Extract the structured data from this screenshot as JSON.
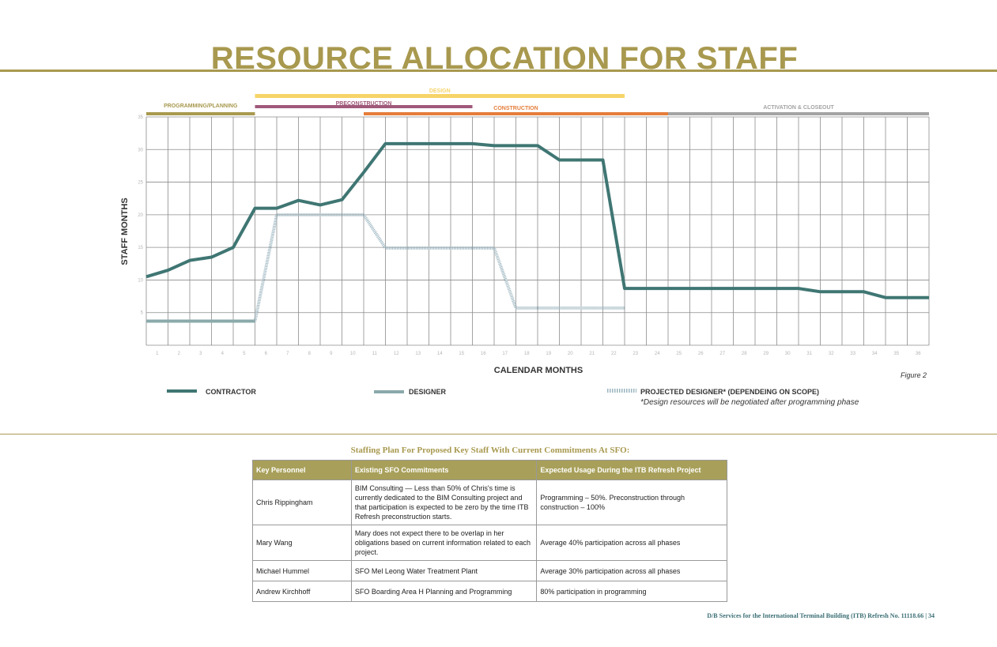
{
  "page_title": "RESOURCE ALLOCATION FOR STAFF",
  "phases": [
    {
      "label": "PROGRAMMING/PLANNING",
      "color": "#a8994f",
      "start": 1,
      "end": 5
    },
    {
      "label": "DESIGN",
      "color": "#f7d469",
      "start": 6,
      "end": 22
    },
    {
      "label": "PRECONSTRUCTION",
      "color": "#a0597a",
      "start": 6,
      "end": 15
    },
    {
      "label": "CONSTRUCTION",
      "color": "#e57d3a",
      "start": 11,
      "end": 24
    },
    {
      "label": "ACTIVATION & CLOSEOUT",
      "color": "#a4a4a4",
      "start": 25,
      "end": 36
    }
  ],
  "chart_data": {
    "type": "line",
    "xlabel": "CALENDAR MONTHS",
    "ylabel": "STAFF MONTHS",
    "x": [
      1,
      2,
      3,
      4,
      5,
      6,
      7,
      8,
      9,
      10,
      11,
      12,
      13,
      14,
      15,
      16,
      17,
      18,
      19,
      20,
      21,
      22,
      23,
      24,
      25,
      26,
      27,
      28,
      29,
      30,
      31,
      32,
      33,
      34,
      35,
      36
    ],
    "ylim": [
      0,
      35
    ],
    "yticks": [
      5,
      10,
      15,
      20,
      25,
      30,
      35
    ],
    "grid": true,
    "series": [
      {
        "name": "CONTRACTOR",
        "color": "#3f7673",
        "style": "solid",
        "points": [
          [
            0,
            10.5
          ],
          [
            1,
            11.5
          ],
          [
            2,
            13
          ],
          [
            3,
            13.5
          ],
          [
            4,
            15
          ],
          [
            5,
            21
          ],
          [
            6,
            21
          ],
          [
            7,
            22.2
          ],
          [
            8,
            21.5
          ],
          [
            9,
            22.3
          ],
          [
            10,
            26.5
          ],
          [
            11,
            30.9
          ],
          [
            12,
            30.9
          ],
          [
            13,
            30.9
          ],
          [
            14,
            30.9
          ],
          [
            15,
            30.9
          ],
          [
            16,
            30.6
          ],
          [
            17,
            30.6
          ],
          [
            18,
            30.6
          ],
          [
            19,
            28.4
          ],
          [
            20,
            28.4
          ],
          [
            21,
            28.4
          ],
          [
            22,
            8.7
          ],
          [
            23,
            8.7
          ],
          [
            24,
            8.7
          ],
          [
            25,
            8.7
          ],
          [
            26,
            8.7
          ],
          [
            27,
            8.7
          ],
          [
            28,
            8.7
          ],
          [
            29,
            8.7
          ],
          [
            30,
            8.7
          ],
          [
            31,
            8.2
          ],
          [
            32,
            8.2
          ],
          [
            33,
            8.2
          ],
          [
            34,
            7.3
          ],
          [
            35,
            7.3
          ],
          [
            36,
            7.3
          ]
        ]
      },
      {
        "name": "DESIGNER",
        "color": "#8aa9ab",
        "style": "solid",
        "points": [
          [
            0,
            3.7
          ],
          [
            1,
            3.7
          ],
          [
            2,
            3.7
          ],
          [
            3,
            3.7
          ],
          [
            4,
            3.7
          ],
          [
            5,
            3.7
          ]
        ]
      },
      {
        "name": "PROJECTED DESIGNER* (DEPENDEING ON SCOPE)",
        "color": "#9bb5bf",
        "style": "hatched",
        "points": [
          [
            5,
            3.7
          ],
          [
            6,
            20
          ],
          [
            7,
            20
          ],
          [
            8,
            20
          ],
          [
            9,
            20
          ],
          [
            10,
            20
          ],
          [
            11,
            14.9
          ],
          [
            12,
            14.9
          ],
          [
            13,
            14.9
          ],
          [
            14,
            14.9
          ],
          [
            15,
            14.9
          ],
          [
            16,
            14.9
          ],
          [
            17,
            5.7
          ],
          [
            18,
            5.7
          ],
          [
            19,
            5.7
          ],
          [
            20,
            5.7
          ],
          [
            21,
            5.7
          ],
          [
            22,
            5.7
          ]
        ]
      }
    ]
  },
  "figure_label": "Figure 2",
  "legend": {
    "contractor": "CONTRACTOR",
    "designer": "DESIGNER",
    "projected": "PROJECTED DESIGNER* (DEPENDEING ON SCOPE)",
    "note": "*Design resources will be negotiated after programming phase"
  },
  "table": {
    "caption": "Staffing Plan For Proposed Key Staff With Current Commitments At SFO:",
    "headers": [
      "Key Personnel",
      "Existing SFO Commitments",
      "Expected Usage During the ITB Refresh Project"
    ],
    "rows": [
      [
        "Chris Rippingham",
        "BIM Consulting — Less than 50% of Chris's time is currently dedicated to the BIM Consulting project and that participation is expected to be zero by the time ITB Refresh preconstruction starts.",
        "Programming – 50%.  Preconstruction through construction – 100%"
      ],
      [
        "Mary Wang",
        "Mary does not expect there to be overlap in her obligations based on current information related to each project.",
        "Average 40% participation across all phases"
      ],
      [
        "Michael Hummel",
        "SFO Mel Leong Water Treatment Plant",
        "Average 30% participation across all phases"
      ],
      [
        "Andrew Kirchhoff",
        "SFO Boarding Area H Planning and Programming",
        "80% participation in programming"
      ]
    ]
  },
  "footer": "D/B Services for the International Terminal Building (ITB) Refresh No. 11118.66  |  34"
}
